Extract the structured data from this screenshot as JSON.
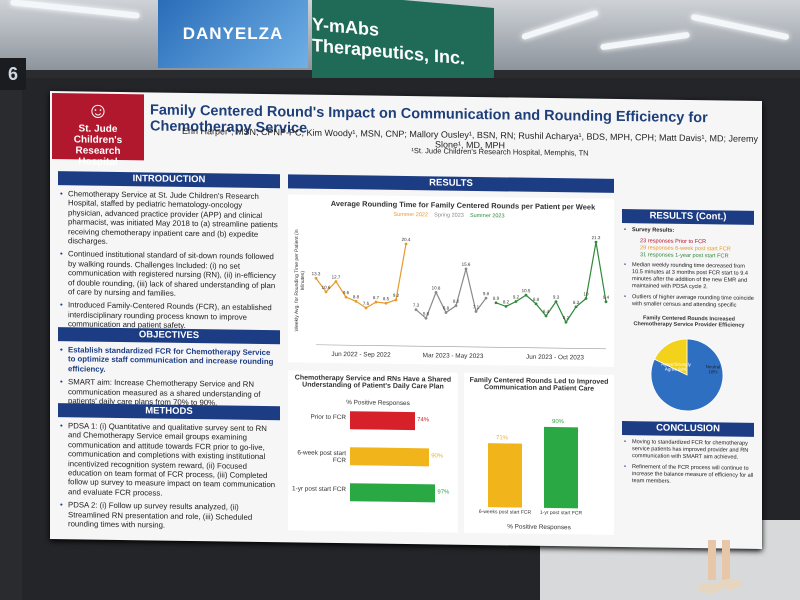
{
  "scene": {
    "booth_number": "6",
    "banner_left": "DANYELZA",
    "banner_right": "Y-mAbs Therapeutics, Inc."
  },
  "poster": {
    "logo": "St. Jude Children's Research Hospital",
    "title": "Family Centered Round's Impact on Communication and Rounding Efficiency for Chemotherapy Service",
    "authors": "Erin Harper¹, MSN, CPNP-PC; Kim Woody¹, MSN, CNP; Mallory Ousley¹, BSN, RN; Rushil Acharya¹, BDS, MPH, CPH; Matt Davis¹, MD; Jeremy Slone¹, MD, MPH",
    "affiliation": "¹St. Jude Children's Research Hospital, Memphis, TN",
    "introduction": {
      "heading": "INTRODUCTION",
      "bullets": [
        "Chemotherapy Service at St. Jude Children's Research Hospital, staffed by pediatric hematology-oncology physician, advanced practice provider (APP) and clinical pharmacist, was initiated May 2018 to (a) streamline patients receiving chemotherapy inpatient care and (b) expedite discharges.",
        "Continued institutional standard of sit-down rounds followed by walking rounds. Challenges Included: (i) no set communication with registered nursing (RN), (ii) in-efficiency of double rounding, (iii) lack of shared understanding of plan of care by nursing and families.",
        "Introduced Family-Centered Rounds (FCR), an established interdisciplinary rounding process known to improve communication and patient safety."
      ]
    },
    "objectives": {
      "heading": "OBJECTIVES",
      "bullets": [
        "Establish standardized FCR for Chemotherapy Service to optimize staff communication and increase rounding efficiency.",
        "SMART aim: Increase Chemotherapy Service and RN communication measured as a shared understanding of patients' daily care plans from 70% to 90%."
      ]
    },
    "methods": {
      "heading": "METHODS",
      "bullets": [
        "PDSA 1: (i) Quantitative and qualitative survey sent to RN and Chemotherapy Service email groups examining communication and attitude towards FCR prior to go-live, communication and completions with existing institutional incentivized recognition system reward, (ii) Focused education on team format of FCR process, (iii) Completed follow up survey to measure impact on team communication and evaluate FCR process.",
        "PDSA 2: (i) Follow up survey results analyzed, (ii) Streamlined RN presentation and role, (iii) Scheduled rounding times with nursing."
      ]
    },
    "results": {
      "heading": "RESULTS",
      "line_chart_title": "Average Rounding Time for Family Centered Rounds per Patient per Week",
      "line_chart_ylabel": "Weekly Avg. for Rounding Time per Patient (in Minutes)",
      "period_labels": [
        "Jun 2022 - Sep 2022",
        "Mar 2023 - May 2023",
        "Jun 2023 - Oct 2023"
      ],
      "bar1_title": "Chemotherapy Service and RNs Have a Shared Understanding of Patient's Daily Care Plan",
      "bar1_subtitle": "% Positive Responses",
      "bar2_title": "Family Centered Rounds Led to Improved Communication and Patient Care",
      "bar2_xlabel": "% Positive Responses"
    },
    "results_cont": {
      "heading": "RESULTS (Cont.)",
      "survey_label": "Survey Results:",
      "survey_items": [
        "23 responses Prior to FCR",
        "29 responses 6-week post start FCR",
        "31 responses 1-year post start FCR"
      ],
      "median_text": "Median weekly rounding time decreased from 10.5 minutes at 3 months post FCR start to 9.4 minutes after the addition of the new EMR and maintained with PDSA cycle 2.",
      "outlier_text": "Outliers of higher average rounding time coincide with smaller census and attending specific",
      "pie_title": "Family Centered Rounds Increased Chemotherapy Service Provider Efficiency",
      "pie_labels": [
        "Agree/Strongly Agree 82%",
        "Neutral 18%"
      ]
    },
    "conclusion": {
      "heading": "CONCLUSION",
      "bullets": [
        "Moving to standardized FCR for chemotherapy service patients has improved provider and RN communication with SMART aim achieved.",
        "Refinement of the FCR process will continue to increase the balance measure of efficiency for all team members."
      ]
    }
  },
  "chart_data": [
    {
      "type": "line",
      "title": "Average Rounding Time for Family Centered Rounds per Patient per Week",
      "ylabel": "Weekly Avg. for Rounding Time per Patient (in Minutes)",
      "series": [
        {
          "name": "Summer 2022",
          "values": [
            13.3,
            10.6,
            12.7,
            9.6,
            8.8,
            7.5,
            8.7,
            8.5,
            9.2,
            20.4
          ]
        },
        {
          "name": "Spring 2023",
          "values": [
            7.3,
            5.6,
            10.8,
            6.8,
            8.2,
            15.6,
            7.1,
            9.8
          ]
        },
        {
          "name": "Summer 2023",
          "values": [
            8.9,
            8.2,
            9.2,
            10.5,
            8.8,
            6.4,
            9.3,
            5.2,
            8.3,
            10.0,
            21.3,
            9.4
          ]
        }
      ]
    },
    {
      "type": "bar",
      "title": "Chemotherapy Service and RNs Have a Shared Understanding of Patient's Daily Care Plan",
      "categories": [
        "Prior to FCR",
        "6-week post start FCR",
        "1-yr post start FCR"
      ],
      "values": [
        74,
        90,
        97
      ],
      "colors": [
        "#d6202a",
        "#f2b41b",
        "#2aa844"
      ]
    },
    {
      "type": "bar",
      "title": "Family Centered Rounds Led to Improved Communication and Patient Care",
      "categories": [
        "6-weeks post start FCR",
        "1-yr post start FCR"
      ],
      "values": [
        71,
        90
      ],
      "colors": [
        "#f2b41b",
        "#2aa844"
      ]
    },
    {
      "type": "pie",
      "title": "Family Centered Rounds Increased Chemotherapy Service Provider Efficiency",
      "categories": [
        "Agree/Strongly Agree",
        "Neutral"
      ],
      "values": [
        82,
        18
      ],
      "colors": [
        "#2f6fc2",
        "#f2d21b"
      ]
    }
  ]
}
